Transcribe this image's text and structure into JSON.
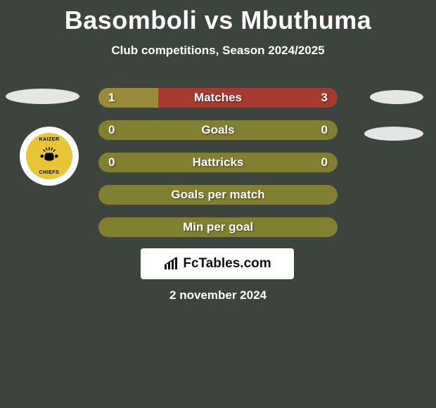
{
  "title": "Basomboli vs Mbuthuma",
  "subtitle": "Club competitions, Season 2024/2025",
  "date": "2 november 2024",
  "brand": "FcTables.com",
  "club_badge": {
    "top_text": "KAIZER",
    "bottom_text": "CHIEFS",
    "bg_color": "#e7c534"
  },
  "colors": {
    "background": "#3d433d",
    "bar_base": "#9a8a3c",
    "bar_accent_red": "#a73a2e",
    "bar_accent_olive": "#808030",
    "text": "#ffffff"
  },
  "stats": [
    {
      "label": "Matches",
      "left_value": "1",
      "right_value": "3",
      "left_pct": 25,
      "right_pct": 75,
      "left_color": "#9a8a3c",
      "right_color": "#a73a2e",
      "base_color": "#9a8a3c"
    },
    {
      "label": "Goals",
      "left_value": "0",
      "right_value": "0",
      "left_pct": 0,
      "right_pct": 0,
      "left_color": "#9a8a3c",
      "right_color": "#9a8a3c",
      "base_color": "#808030"
    },
    {
      "label": "Hattricks",
      "left_value": "0",
      "right_value": "0",
      "left_pct": 0,
      "right_pct": 0,
      "left_color": "#9a8a3c",
      "right_color": "#9a8a3c",
      "base_color": "#808030"
    },
    {
      "label": "Goals per match",
      "left_value": "",
      "right_value": "",
      "left_pct": 0,
      "right_pct": 0,
      "left_color": "#9a8a3c",
      "right_color": "#9a8a3c",
      "base_color": "#808030"
    },
    {
      "label": "Min per goal",
      "left_value": "",
      "right_value": "",
      "left_pct": 0,
      "right_pct": 0,
      "left_color": "#9a8a3c",
      "right_color": "#9a8a3c",
      "base_color": "#808030"
    }
  ]
}
